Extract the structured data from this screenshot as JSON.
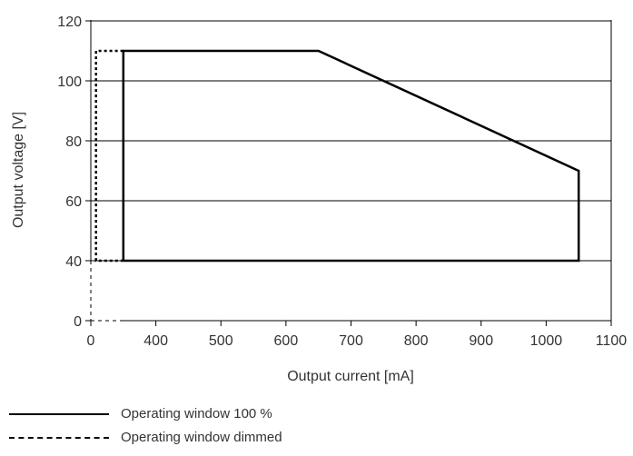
{
  "chart_data": {
    "type": "line",
    "xlabel": "Output current [mA]",
    "ylabel": "Output voltage [V]",
    "xlim": [
      0,
      1100
    ],
    "ylim": [
      0,
      120
    ],
    "x_axis_break": "between 0 and 300",
    "y_axis_break": "between 0 and 40",
    "x_ticks": [
      0,
      400,
      500,
      600,
      700,
      800,
      900,
      1000,
      1100
    ],
    "y_ticks": [
      0,
      40,
      60,
      80,
      100,
      120
    ],
    "x_tick_labels": [
      "0",
      "400",
      "500",
      "600",
      "700",
      "800",
      "900",
      "1000",
      "1100"
    ],
    "y_tick_labels": [
      "0",
      "40",
      "60",
      "80",
      "100",
      "120"
    ],
    "grid": "horizontal",
    "series": [
      {
        "name": "Operating window 100 %",
        "style": "solid",
        "color": "#000000",
        "points": [
          [
            350,
            40
          ],
          [
            350,
            110
          ],
          [
            650,
            110
          ],
          [
            1050,
            70
          ],
          [
            1050,
            40
          ],
          [
            350,
            40
          ]
        ]
      },
      {
        "name": "Operating window dimmed",
        "style": "dotted",
        "color": "#000000",
        "points": [
          [
            350,
            40
          ],
          [
            308,
            40
          ],
          [
            308,
            110
          ],
          [
            350,
            110
          ]
        ]
      }
    ],
    "legend_position": "bottom-left"
  }
}
